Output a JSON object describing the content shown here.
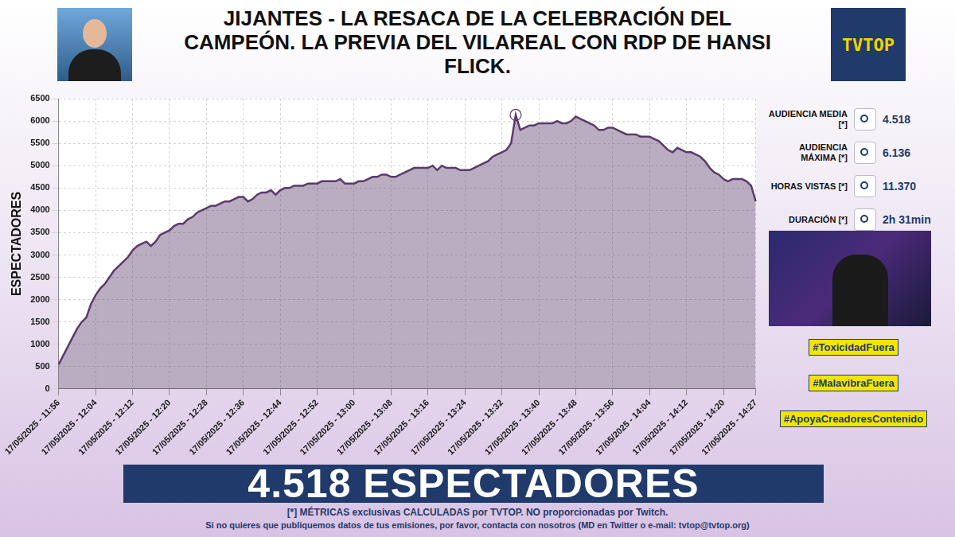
{
  "title": "JIJANTES - LA RESACA DE LA CELEBRACIÓN DEL CAMPEÓN. LA PREVIA DEL VILAREAL CON RDP DE HANSI FLICK.",
  "logo": "TVTOP",
  "chart_data": {
    "type": "area",
    "y_label": "ESPECTADORES",
    "color": "#5b3a6b",
    "grid": true,
    "categories": [
      "17/05/2025 - 11:56",
      null,
      null,
      null,
      null,
      null,
      null,
      null,
      "17/05/2025 - 12:04",
      null,
      null,
      null,
      null,
      null,
      null,
      null,
      "17/05/2025 - 12:12",
      null,
      null,
      null,
      null,
      null,
      null,
      null,
      "17/05/2025 - 12:20",
      null,
      null,
      null,
      null,
      null,
      null,
      null,
      "17/05/2025 - 12:28",
      null,
      null,
      null,
      null,
      null,
      null,
      null,
      "17/05/2025 - 12:36",
      null,
      null,
      null,
      null,
      null,
      null,
      null,
      "17/05/2025 - 12:44",
      null,
      null,
      null,
      null,
      null,
      null,
      null,
      "17/05/2025 - 12:52",
      null,
      null,
      null,
      null,
      null,
      null,
      null,
      "17/05/2025 - 13:00",
      null,
      null,
      null,
      null,
      null,
      null,
      null,
      "17/05/2025 - 13:08",
      null,
      null,
      null,
      null,
      null,
      null,
      null,
      "17/05/2025 - 13:16",
      null,
      null,
      null,
      null,
      null,
      null,
      null,
      "17/05/2025 - 13:24",
      null,
      null,
      null,
      null,
      null,
      null,
      null,
      "17/05/2025 - 13:32",
      null,
      null,
      null,
      null,
      null,
      null,
      null,
      "17/05/2025 - 13:40",
      null,
      null,
      null,
      null,
      null,
      null,
      null,
      "17/05/2025 - 13:48",
      null,
      null,
      null,
      null,
      null,
      null,
      null,
      "17/05/2025 - 13:56",
      null,
      null,
      null,
      null,
      null,
      null,
      null,
      "17/05/2025 - 14:04",
      null,
      null,
      null,
      null,
      null,
      null,
      null,
      "17/05/2025 - 14:12",
      null,
      null,
      null,
      null,
      null,
      null,
      null,
      "17/05/2025 - 14:20",
      null,
      null,
      null,
      null,
      null,
      null,
      "17/05/2025 - 14:27"
    ],
    "values": [
      550,
      750,
      950,
      1150,
      1350,
      1500,
      1600,
      1900,
      2100,
      2250,
      2350,
      2500,
      2650,
      2750,
      2850,
      2950,
      3100,
      3200,
      3250,
      3300,
      3200,
      3300,
      3450,
      3500,
      3550,
      3650,
      3700,
      3700,
      3800,
      3850,
      3950,
      4000,
      4050,
      4100,
      4100,
      4150,
      4200,
      4200,
      4250,
      4300,
      4300,
      4200,
      4250,
      4350,
      4400,
      4400,
      4450,
      4350,
      4450,
      4500,
      4500,
      4550,
      4550,
      4550,
      4600,
      4600,
      4600,
      4650,
      4650,
      4650,
      4650,
      4700,
      4600,
      4600,
      4600,
      4650,
      4650,
      4700,
      4750,
      4750,
      4800,
      4800,
      4750,
      4750,
      4800,
      4850,
      4900,
      4950,
      4950,
      4950,
      4950,
      5000,
      4900,
      5000,
      4950,
      4950,
      4950,
      4900,
      4900,
      4900,
      4950,
      5000,
      5050,
      5100,
      5200,
      5250,
      5300,
      5350,
      5500,
      6136,
      5800,
      5850,
      5900,
      5900,
      5950,
      5950,
      5950,
      5950,
      6000,
      5950,
      5950,
      6000,
      6100,
      6050,
      6000,
      5950,
      5900,
      5800,
      5800,
      5850,
      5850,
      5800,
      5750,
      5700,
      5700,
      5700,
      5650,
      5650,
      5650,
      5600,
      5550,
      5450,
      5350,
      5300,
      5400,
      5350,
      5300,
      5300,
      5250,
      5200,
      5100,
      4950,
      4850,
      4800,
      4700,
      4650,
      4700,
      4700,
      4700,
      4650,
      4550,
      4200
    ],
    "ylim": [
      0,
      6500
    ],
    "yticks": [
      0,
      500,
      1000,
      1500,
      2000,
      2500,
      3000,
      3500,
      4000,
      4500,
      5000,
      5500,
      6000,
      6500
    ]
  },
  "stats": [
    {
      "label": "AUDIENCIA MEDIA [*]",
      "value": "4.518"
    },
    {
      "label": "AUDIENCIA MÁXIMA [*]",
      "value": "6.136"
    },
    {
      "label": "HORAS VISTAS [*]",
      "value": "11.370"
    },
    {
      "label": "DURACIÓN [*]",
      "value": "2h 31min"
    }
  ],
  "hashtags": [
    "#ToxicidadFuera",
    "#MalavibraFuera",
    "#ApoyaCreadoresContenido"
  ],
  "banner": "4.518 ESPECTADORES",
  "footer": [
    "[*] MÉTRICAS exclusivas CALCULADAS por TVTOP. NO proporcionadas por Twitch.",
    "Si no quieres que publiquemos datos de tus emisiones, por favor, contacta con nosotros (MD en Twitter o e-mail: tvtop@tvtop.org)"
  ]
}
